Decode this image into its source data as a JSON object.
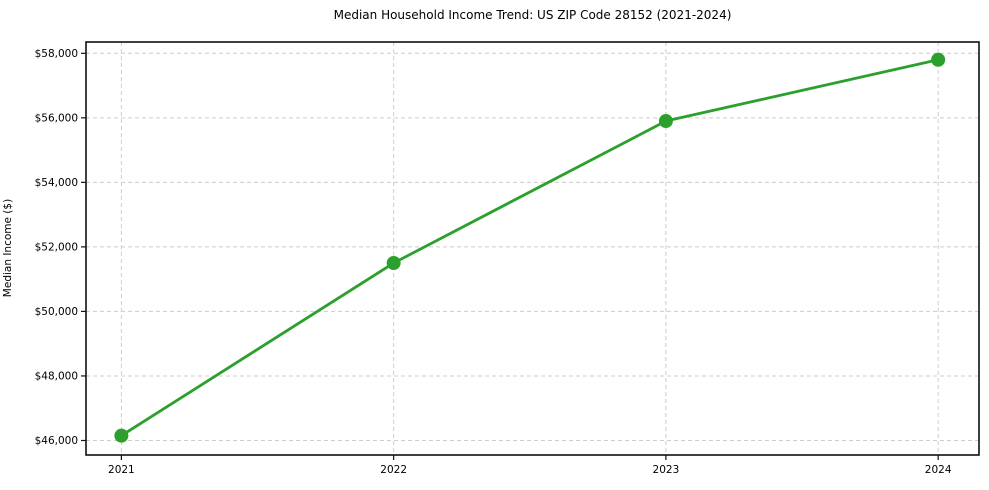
{
  "chart_data": {
    "type": "line",
    "title": "Median Household Income Trend: US ZIP Code 28152 (2021-2024)",
    "xlabel": "",
    "ylabel": "Median Income ($)",
    "x": [
      2021,
      2022,
      2023,
      2024
    ],
    "values": [
      46150,
      51500,
      55900,
      57800
    ],
    "xticks": [
      2021,
      2022,
      2023,
      2024
    ],
    "xtick_labels": [
      "2021",
      "2022",
      "2023",
      "2024"
    ],
    "yticks": [
      46000,
      48000,
      50000,
      52000,
      54000,
      56000,
      58000
    ],
    "ytick_labels": [
      "$46,000",
      "$48,000",
      "$50,000",
      "$52,000",
      "$54,000",
      "$56,000",
      "$58,000"
    ],
    "xlim": [
      2020.87,
      2024.15
    ],
    "ylim": [
      45550,
      58350
    ],
    "grid": true,
    "grid_style": "dashed",
    "legend_position": "none",
    "colors": {
      "line": "#2ca02c",
      "marker": "#2ca02c",
      "grid": "#cccccc",
      "axis_box": "#111111",
      "tick": "#111111",
      "text": "#000000",
      "background": "#ffffff"
    },
    "style": {
      "line_width": 2.8,
      "marker_radius": 7,
      "tick_length": 5,
      "tick_label_size": 10.5,
      "title_size": 12
    }
  }
}
